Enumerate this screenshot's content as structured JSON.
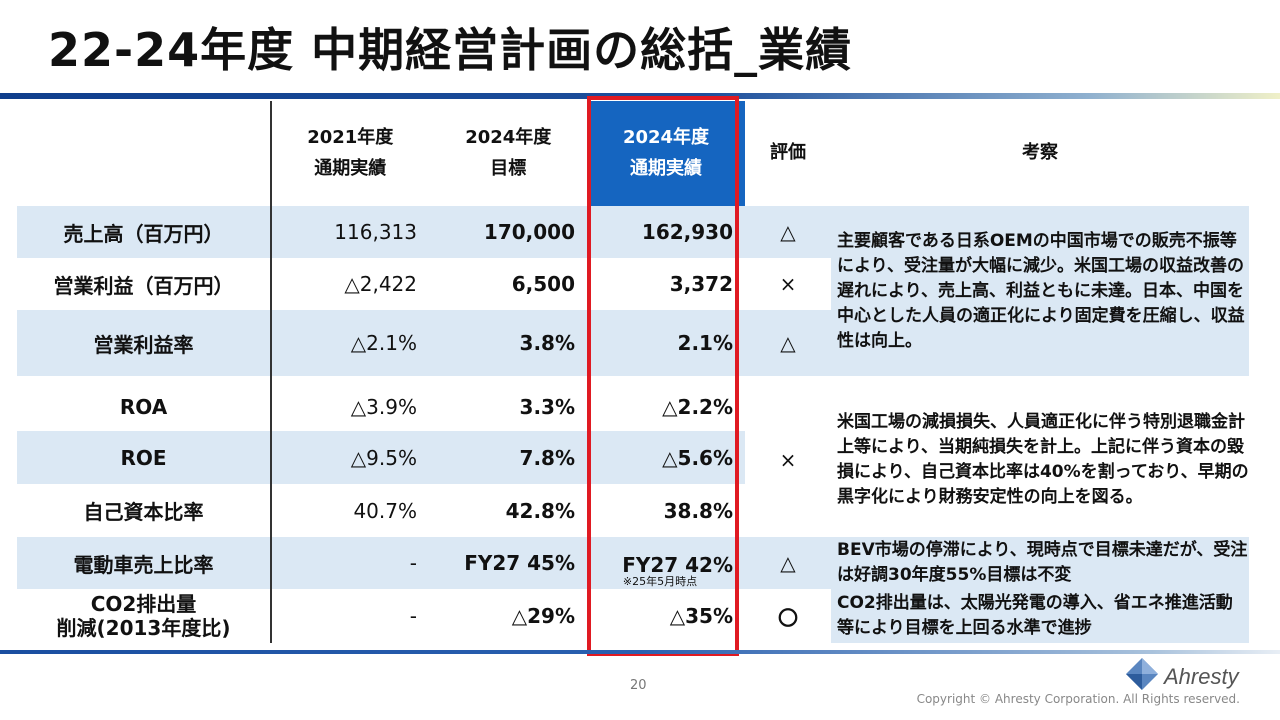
{
  "slide": {
    "title": "22-24年度 中期経営計画の総括_業績",
    "page_number": "20",
    "copyright": "Copyright © Ahresty Corporation. All Rights reserved.",
    "logo_text": "Ahresty"
  },
  "table": {
    "headers": {
      "col2021_line1": "2021年度",
      "col2021_line2": "通期実績",
      "col2024t_line1": "2024年度",
      "col2024t_line2": "目標",
      "col2024a_line1": "2024年度",
      "col2024a_line2": "通期実績",
      "eval": "評価",
      "notes": "考察"
    },
    "rows": [
      {
        "label": "売上高（百万円）",
        "v2021": "116,313",
        "target": "170,000",
        "actual": "162,930",
        "eval": "△"
      },
      {
        "label": "営業利益（百万円）",
        "v2021": "△2,422",
        "target": "6,500",
        "actual": "3,372",
        "eval": "×"
      },
      {
        "label": "営業利益率",
        "v2021": "△2.1%",
        "target": "3.8%",
        "actual": "2.1%",
        "eval": "△"
      },
      {
        "label": "ROA",
        "v2021": "△3.9%",
        "target": "3.3%",
        "actual": "△2.2%",
        "eval": ""
      },
      {
        "label": "ROE",
        "v2021": "△9.5%",
        "target": "7.8%",
        "actual": "△5.6%",
        "eval": "×"
      },
      {
        "label": "自己資本比率",
        "v2021": "40.7%",
        "target": "42.8%",
        "actual": "38.8%",
        "eval": ""
      },
      {
        "label": "電動車売上比率",
        "v2021": "-",
        "target": "FY27 45%",
        "actual": "FY27 42%",
        "actual_note": "※25年5月時点",
        "eval": "△"
      },
      {
        "label_line1": "CO2排出量",
        "label_line2": "削減(2013年度比)",
        "v2021": "-",
        "target": "△29%",
        "actual": "△35%",
        "eval": "〇"
      }
    ],
    "notes": {
      "group1": "主要顧客である日系OEMの中国市場での販売不振等により、受注量が大幅に減少。米国工場の収益改善の遅れにより、売上高、利益ともに未達。日本、中国を中心とした人員の適正化により固定費を圧縮し、収益性は向上。",
      "group2": "米国工場の減損損失、人員適正化に伴う特別退職金計上等により、当期純損失を計上。上記に伴う資本の毀損により、自己資本比率は40%を割っており、早期の黒字化により財務安定性の向上を図る。",
      "ev": "BEV市場の停滞により、現時点で目標未達だが、受注は好調30年度55%目標は不変",
      "co2": "CO2排出量は、太陽光発電の導入、省エネ推進活動等により目標を上回る水準で進捗"
    }
  }
}
